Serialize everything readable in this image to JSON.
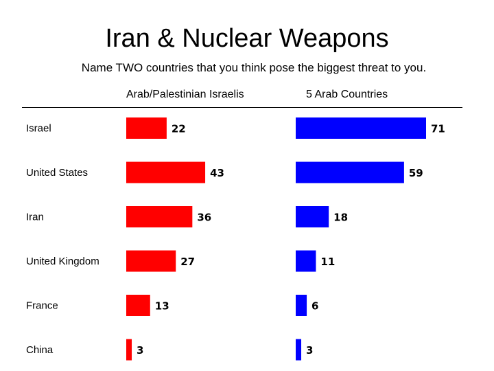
{
  "chart_data": {
    "type": "bar",
    "orientation": "horizontal",
    "title": "Iran & Nuclear Weapons",
    "subtitle": "Name TWO countries that you think pose the biggest threat to you.",
    "categories": [
      "Israel",
      "United States",
      "Iran",
      "United Kingdom",
      "France",
      "China"
    ],
    "series": [
      {
        "name": "Arab/Palestinian Israelis",
        "values": [
          22,
          43,
          36,
          27,
          13,
          3
        ],
        "color": "#ff0000"
      },
      {
        "name": "5 Arab Countries",
        "values": [
          71,
          59,
          18,
          11,
          6,
          3
        ],
        "color": "#0000ff"
      }
    ],
    "xlim": [
      0,
      71
    ],
    "grid": false,
    "legend": "column headers"
  }
}
